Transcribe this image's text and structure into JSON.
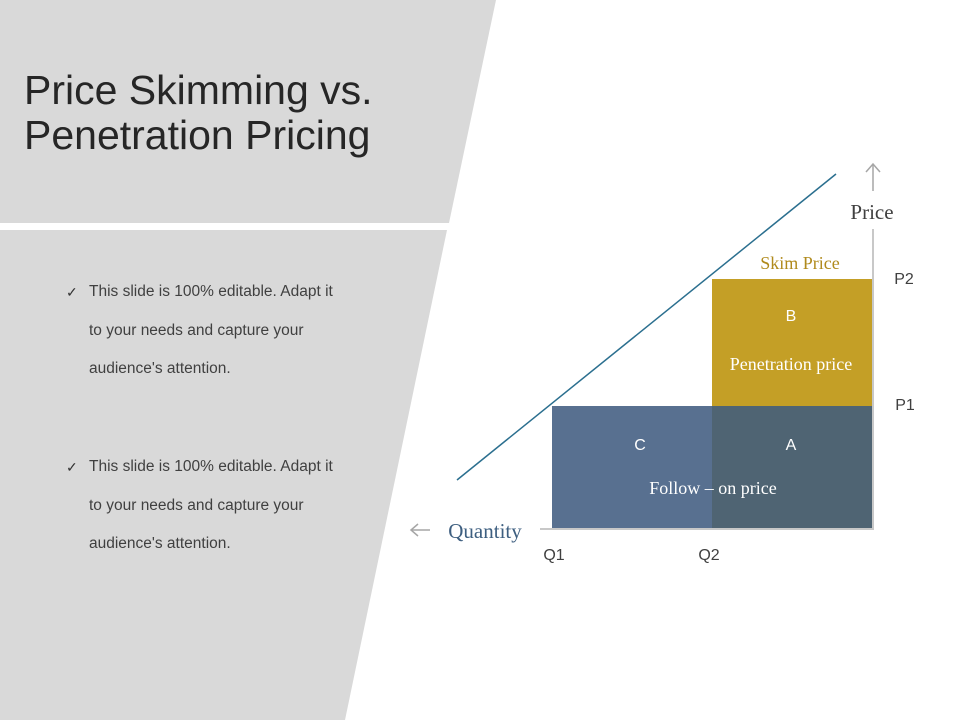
{
  "slide": {
    "title_line1": "Price Skimming vs.",
    "title_line2": "Penetration Pricing"
  },
  "bullets": [
    {
      "line1": "This slide is 100% editable. Adapt it",
      "line2": "to your needs and capture your",
      "line3": "audience's attention."
    },
    {
      "line1": "This slide is 100% editable. Adapt it",
      "line2": "to your needs and capture your",
      "line3": "audience's attention."
    }
  ],
  "diagram": {
    "price_axis_label": "Price",
    "quantity_axis_label": "Quantity",
    "skim_price_label": "Skim Price",
    "penetration_price_label": "Penetration price",
    "follow_on_price_label": "Follow – on price",
    "p2_label": "P2",
    "p1_label": "P1",
    "q1_label": "Q1",
    "q2_label": "Q2",
    "box_b_label": "B",
    "box_c_label": "C",
    "box_a_label": "A"
  },
  "colors": {
    "panel_gray": "#d9d9d9",
    "box_b": "#c49f26",
    "box_c": "#587090",
    "box_a": "#4f6473",
    "demand_line": "#2b6f8f",
    "skim_text": "#b08a1c",
    "quantity_text": "#3e5f80"
  }
}
